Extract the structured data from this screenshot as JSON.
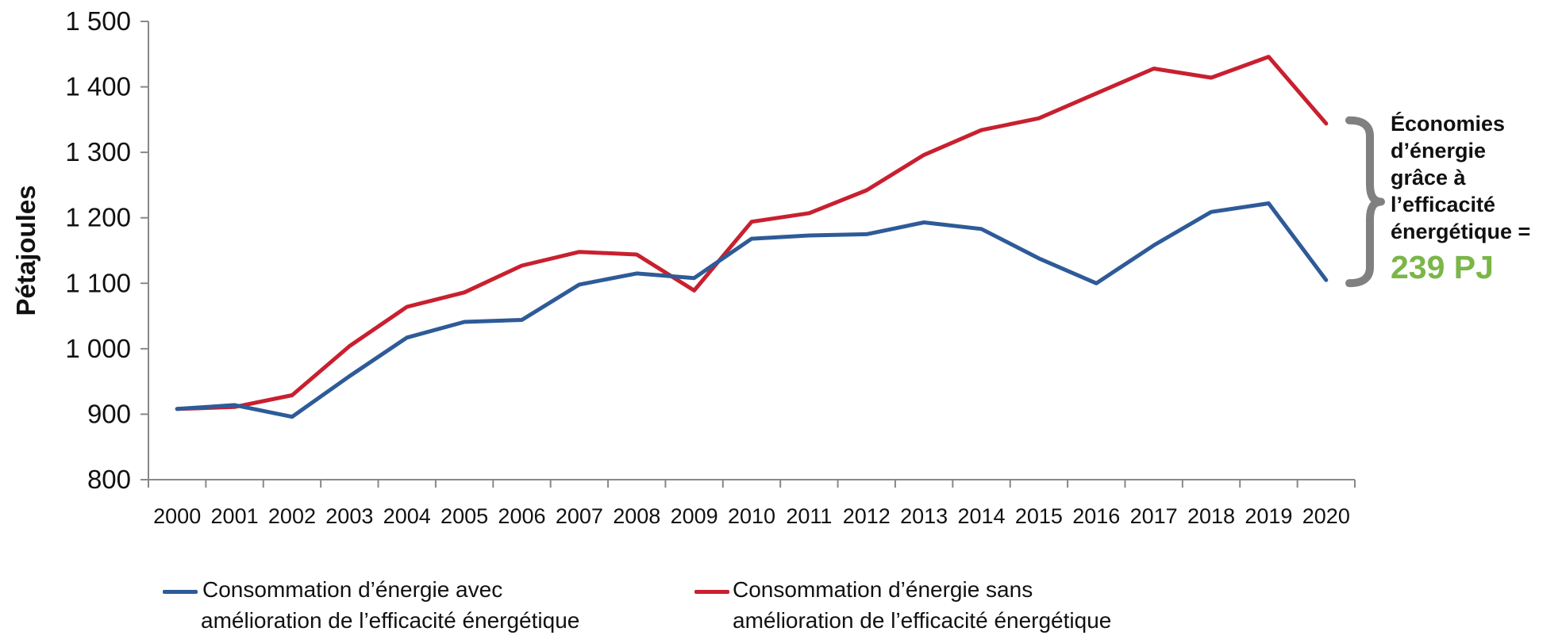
{
  "chart_data": {
    "type": "line",
    "x": [
      2000,
      2001,
      2002,
      2003,
      2004,
      2005,
      2006,
      2007,
      2008,
      2009,
      2010,
      2011,
      2012,
      2013,
      2014,
      2015,
      2016,
      2017,
      2018,
      2019,
      2020
    ],
    "ylabel": "Pétajoules",
    "ylim": [
      800,
      1500
    ],
    "yticks": [
      800,
      900,
      1000,
      1100,
      1200,
      1300,
      1400,
      1500
    ],
    "ytick_labels": [
      "800",
      "900",
      "1 000",
      "1 100",
      "1 200",
      "1 300",
      "1 400",
      "1 500"
    ],
    "grid": false,
    "legend_position": "bottom",
    "series": [
      {
        "name": "Consommation d’énergie avec amélioration de l’efficacité énergétique",
        "legend_lines": "Consommation d’énergie avec\namélioration de l’efficacité énergétique",
        "color": "#2e5b98",
        "values": [
          908,
          914,
          896,
          958,
          1017,
          1041,
          1044,
          1098,
          1115,
          1108,
          1168,
          1173,
          1175,
          1193,
          1183,
          1138,
          1100,
          1158,
          1209,
          1222,
          1105
        ]
      },
      {
        "name": "Consommation d’énergie sans amélioration de l’efficacité énergétique",
        "legend_lines": "Consommation d’énergie sans\namélioration de l’efficacité énergétique",
        "color": "#c8202f",
        "values": [
          908,
          911,
          929,
          1004,
          1064,
          1086,
          1127,
          1148,
          1144,
          1089,
          1194,
          1207,
          1242,
          1296,
          1334,
          1352,
          1390,
          1428,
          1414,
          1446,
          1344
        ]
      }
    ],
    "annotation": {
      "text": "Économies\nd’énergie\ngrâce à\nl’efficacité\nénergétique =",
      "value": "239 PJ",
      "value_color": "#7ab648",
      "brace_color": "#808080"
    }
  }
}
